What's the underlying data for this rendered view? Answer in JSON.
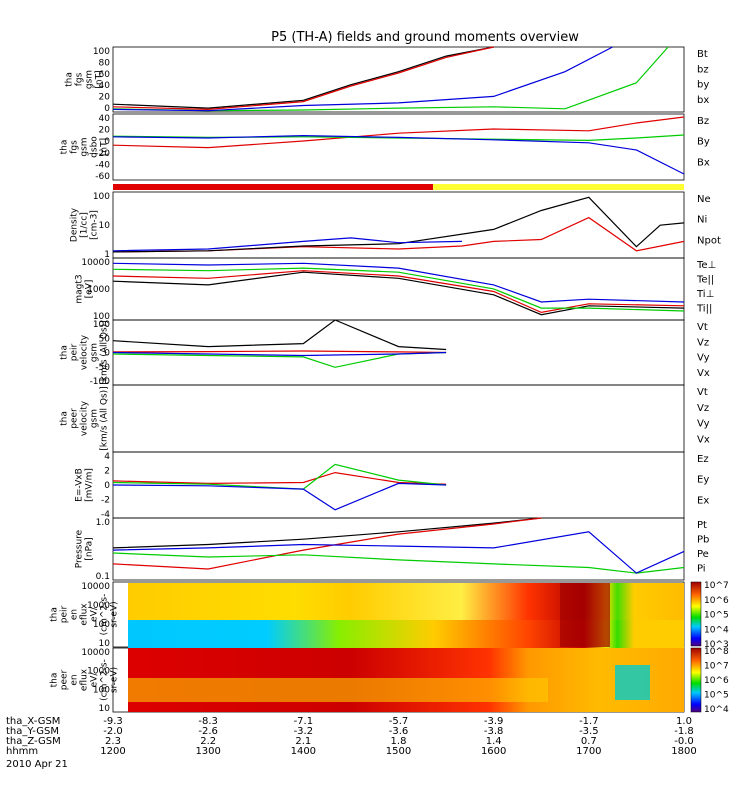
{
  "title": "P5 (TH-A) fields and ground moments overview",
  "x_axis": {
    "rows": [
      {
        "label": "tha_X-GSM",
        "values": [
          "-9.3",
          "-8.3",
          "-7.1",
          "-5.7",
          "-3.9",
          "-1.7",
          "1.0"
        ]
      },
      {
        "label": "tha_Y-GSM",
        "values": [
          "-2.0",
          "-2.6",
          "-3.2",
          "-3.6",
          "-3.8",
          "-3.5",
          "-1.8"
        ]
      },
      {
        "label": "tha_Z-GSM",
        "values": [
          "2.3",
          "2.2",
          "2.1",
          "1.8",
          "1.4",
          "0.7",
          "-0.0"
        ]
      },
      {
        "label": "hhmm",
        "values": [
          "1200",
          "1300",
          "1400",
          "1500",
          "1600",
          "1700",
          "1800"
        ]
      }
    ],
    "date": "2010 Apr 21"
  },
  "colors": {
    "black": "#000000",
    "red": "#e00000",
    "green": "#00cc00",
    "blue": "#0000dd",
    "yellow": "#ffff33"
  },
  "panels": [
    {
      "ylabel": [
        "tha",
        "fgs",
        "gsm",
        "[nT]"
      ],
      "ticks": [
        "100",
        "80",
        "60",
        "40",
        "20",
        "0"
      ],
      "legend": [
        "Bt",
        "bz",
        "by",
        "bx"
      ]
    },
    {
      "ylabel": [
        "tha",
        "fgs",
        "gsm",
        "dsbo",
        "[nT]"
      ],
      "ticks": [
        "40",
        "20",
        "0",
        "-20",
        "-40",
        "-60"
      ],
      "legend": [
        "Bz",
        "By",
        "Bx"
      ]
    },
    {
      "ylabel": [
        "Density",
        "[1/cc]",
        "[cm-3]"
      ],
      "ticks": [
        "100",
        "10",
        "1"
      ],
      "legend": [
        "Ne",
        "Ni",
        "Npot"
      ]
    },
    {
      "ylabel": [
        "magt3",
        "[eV]"
      ],
      "ticks": [
        "10000",
        "1000",
        "100"
      ],
      "legend": [
        "Te⊥",
        "Te||",
        "Ti⊥",
        "Ti||"
      ]
    },
    {
      "ylabel": [
        "tha",
        "peir",
        "velocity",
        "gsm",
        "[km/s (All Qs)]"
      ],
      "ticks": [
        "100",
        "50",
        "0",
        "-50",
        "-100"
      ],
      "legend": [
        "Vt",
        "Vz",
        "Vy",
        "Vx"
      ]
    },
    {
      "ylabel": [
        "tha",
        "peer",
        "velocity",
        "gsm",
        "[km/s (All Qs)]"
      ],
      "ticks": [],
      "legend": [
        "Vt",
        "Vz",
        "Vy",
        "Vx"
      ]
    },
    {
      "ylabel": [
        "E=-VxB",
        "[mV/m]"
      ],
      "ticks": [
        "4",
        "2",
        "0",
        "-2",
        "-4"
      ],
      "legend": [
        "Ez",
        "Ey",
        "Ex"
      ]
    },
    {
      "ylabel": [
        "Pressure",
        "[nPa]"
      ],
      "ticks": [
        "1.0",
        "0.1"
      ],
      "legend": [
        "Pt",
        "Pb",
        "Pe",
        "Pi"
      ]
    },
    {
      "ylabel": [
        "tha",
        "peir",
        "en",
        "eflux",
        "eV/",
        "(cm^2-s-",
        "sr-eV)"
      ],
      "ticks": [
        "10000",
        "1000",
        "100",
        "10"
      ],
      "legend": []
    },
    {
      "ylabel": [
        "tha",
        "peer",
        "en",
        "eflux",
        "eV/",
        "(cm^2-s-",
        "sr-eV)"
      ],
      "ticks": [
        "10000",
        "1000",
        "100",
        "10"
      ],
      "legend": []
    }
  ],
  "colorbars": [
    {
      "labels": [
        "10^7",
        "10^6",
        "10^5",
        "10^4",
        "10^3"
      ],
      "exps": [
        "7",
        "6",
        "5",
        "4",
        "3"
      ]
    },
    {
      "labels": [
        "10^8",
        "10^7",
        "10^6",
        "10^5",
        "10^4"
      ],
      "exps": [
        "8",
        "7",
        "6",
        "5",
        "4"
      ]
    }
  ],
  "chart_data": [
    {
      "type": "line",
      "title": "tha fgs gsm [nT]",
      "x_range": [
        "12:00",
        "18:00"
      ],
      "ylim": [
        0,
        100
      ],
      "series": [
        {
          "name": "Bt",
          "x": [
            "12:00",
            "13:00",
            "14:00",
            "14:30",
            "15:00",
            "15:30",
            "16:00"
          ],
          "values": [
            12,
            6,
            18,
            42,
            62,
            86,
            100
          ]
        },
        {
          "name": "bz",
          "x": [
            "12:00",
            "13:00",
            "14:00",
            "14:30",
            "15:00",
            "15:30",
            "16:00"
          ],
          "values": [
            8,
            4,
            16,
            40,
            60,
            84,
            100
          ]
        },
        {
          "name": "by",
          "x": [
            "12:00",
            "13:00",
            "14:00",
            "15:00",
            "16:00",
            "16:45",
            "17:30",
            "17:50"
          ],
          "values": [
            5,
            2,
            3,
            6,
            8,
            5,
            45,
            100
          ]
        },
        {
          "name": "bx",
          "x": [
            "12:00",
            "13:00",
            "14:00",
            "15:00",
            "16:00",
            "16:45",
            "17:15"
          ],
          "values": [
            4,
            2,
            10,
            14,
            24,
            62,
            100
          ]
        }
      ]
    },
    {
      "type": "line",
      "title": "tha fgs gsm dsbo [nT]",
      "x_range": [
        "12:00",
        "18:00"
      ],
      "ylim": [
        -70,
        40
      ],
      "series": [
        {
          "name": "Bz",
          "x": [
            "12:00",
            "13:00",
            "14:00",
            "15:00",
            "16:00",
            "17:00",
            "17:30",
            "18:00"
          ],
          "values": [
            -12,
            -16,
            -5,
            8,
            15,
            12,
            25,
            35
          ]
        },
        {
          "name": "By",
          "x": [
            "12:00",
            "13:00",
            "14:00",
            "15:00",
            "16:00",
            "17:00",
            "17:30",
            "18:00"
          ],
          "values": [
            3,
            1,
            2,
            0,
            -2,
            -4,
            0,
            5
          ]
        },
        {
          "name": "Bx",
          "x": [
            "12:00",
            "13:00",
            "14:00",
            "15:00",
            "16:00",
            "17:00",
            "17:30",
            "18:00"
          ],
          "values": [
            2,
            0,
            4,
            1,
            -3,
            -8,
            -20,
            -60
          ]
        }
      ]
    },
    {
      "type": "line",
      "title": "Density [1/cc]",
      "yscale": "log",
      "x_range": [
        "12:00",
        "18:00"
      ],
      "ylim": [
        0.5,
        300
      ],
      "series": [
        {
          "name": "Ne",
          "x": [
            "12:00",
            "13:00",
            "14:00",
            "15:00",
            "15:40",
            "16:00",
            "16:30",
            "17:00",
            "17:30",
            "18:00"
          ],
          "values": [
            0.9,
            1.0,
            1.5,
            1.2,
            1.6,
            2.5,
            3,
            25,
            1.0,
            2.5
          ]
        },
        {
          "name": "Ni",
          "x": [
            "12:00",
            "13:00",
            "14:00",
            "15:00",
            "16:00",
            "16:30",
            "17:00",
            "17:30",
            "17:45",
            "18:00"
          ],
          "values": [
            0.9,
            1.0,
            1.6,
            2.0,
            8,
            50,
            180,
            1.5,
            12,
            15
          ]
        },
        {
          "name": "Npot",
          "x": [
            "12:00",
            "13:00",
            "14:00",
            "14:30",
            "15:00",
            "15:40"
          ],
          "values": [
            1.0,
            1.2,
            2.5,
            3.5,
            2.2,
            2.5
          ]
        }
      ]
    },
    {
      "type": "line",
      "title": "magt3 [eV]",
      "yscale": "log",
      "x_range": [
        "12:00",
        "18:00"
      ],
      "ylim": [
        100,
        12000
      ],
      "series": [
        {
          "name": "Te⊥",
          "x": [
            "12:00",
            "13:00",
            "14:00",
            "15:00",
            "16:00",
            "16:30",
            "17:00",
            "18:00"
          ],
          "values": [
            3000,
            2500,
            4500,
            3000,
            900,
            180,
            350,
            300
          ]
        },
        {
          "name": "Te||",
          "x": [
            "12:00",
            "13:00",
            "14:00",
            "15:00",
            "16:00",
            "16:30",
            "17:00",
            "18:00"
          ],
          "values": [
            2000,
            1500,
            4000,
            2500,
            700,
            150,
            300,
            250
          ]
        },
        {
          "name": "Ti⊥",
          "x": [
            "12:00",
            "13:00",
            "14:00",
            "15:00",
            "16:00",
            "16:30",
            "17:00",
            "18:00"
          ],
          "values": [
            8000,
            7000,
            8000,
            5500,
            1500,
            400,
            500,
            400
          ]
        },
        {
          "name": "Ti||",
          "x": [
            "12:00",
            "13:00",
            "14:00",
            "15:00",
            "16:00",
            "16:30",
            "17:00",
            "18:00"
          ],
          "values": [
            5000,
            4500,
            5500,
            4000,
            1100,
            250,
            250,
            200
          ]
        }
      ]
    },
    {
      "type": "line",
      "title": "tha peir velocity gsm [km/s (All Qs)]",
      "x_range": [
        "12:00",
        "15:30"
      ],
      "ylim": [
        -110,
        110
      ],
      "series": [
        {
          "name": "Vt",
          "x": [
            "12:00",
            "13:00",
            "14:00",
            "14:20",
            "15:00",
            "15:30"
          ],
          "values": [
            40,
            20,
            30,
            110,
            20,
            10
          ]
        },
        {
          "name": "Vz",
          "x": [
            "12:00",
            "13:00",
            "14:00",
            "15:00",
            "15:30"
          ],
          "values": [
            2,
            3,
            5,
            2,
            0
          ]
        },
        {
          "name": "Vy",
          "x": [
            "12:00",
            "13:00",
            "14:00",
            "14:20",
            "15:00",
            "15:30"
          ],
          "values": [
            -5,
            -10,
            -15,
            -50,
            -5,
            0
          ]
        },
        {
          "name": "Vx",
          "x": [
            "12:00",
            "13:00",
            "14:00",
            "15:00",
            "15:30"
          ],
          "values": [
            0,
            -5,
            -10,
            -5,
            0
          ]
        }
      ]
    },
    {
      "type": "line",
      "title": "tha peer velocity gsm [km/s (All Qs)]",
      "x_range": [
        "12:00",
        "18:00"
      ],
      "series": [
        {
          "name": "Vt",
          "values": []
        },
        {
          "name": "Vz",
          "values": []
        },
        {
          "name": "Vy",
          "values": []
        },
        {
          "name": "Vx",
          "values": []
        }
      ]
    },
    {
      "type": "line",
      "title": "E=-VxB [mV/m]",
      "x_range": [
        "12:00",
        "15:30"
      ],
      "ylim": [
        -4,
        4
      ],
      "series": [
        {
          "name": "Ez",
          "x": [
            "12:00",
            "13:00",
            "14:00",
            "14:20",
            "15:00",
            "15:30"
          ],
          "values": [
            0.5,
            0.2,
            0.3,
            1.5,
            0.3,
            0.1
          ]
        },
        {
          "name": "Ey",
          "x": [
            "12:00",
            "13:00",
            "14:00",
            "14:20",
            "15:00",
            "15:30"
          ],
          "values": [
            0.3,
            0.1,
            -0.5,
            2.5,
            0.6,
            0
          ]
        },
        {
          "name": "Ex",
          "x": [
            "12:00",
            "13:00",
            "14:00",
            "14:20",
            "15:00",
            "15:30"
          ],
          "values": [
            0,
            -0.1,
            -0.5,
            -3,
            0.2,
            0
          ]
        }
      ]
    },
    {
      "type": "line",
      "title": "Pressure [nPa]",
      "yscale": "log",
      "x_range": [
        "12:00",
        "18:00"
      ],
      "ylim": [
        0.02,
        10
      ],
      "series": [
        {
          "name": "Pt",
          "x": [
            "12:00",
            "13:00",
            "14:00",
            "15:00",
            "16:00",
            "16:30"
          ],
          "values": [
            0.5,
            0.7,
            1.2,
            2.5,
            6,
            10
          ]
        },
        {
          "name": "Pb",
          "x": [
            "12:00",
            "13:00",
            "14:00",
            "15:00",
            "16:00",
            "16:30"
          ],
          "values": [
            0.1,
            0.06,
            0.4,
            2.0,
            5.5,
            10
          ]
        },
        {
          "name": "Pe",
          "x": [
            "12:00",
            "13:00",
            "14:00",
            "15:00",
            "16:00",
            "17:00",
            "17:30",
            "18:00"
          ],
          "values": [
            0.3,
            0.2,
            0.25,
            0.15,
            0.1,
            0.07,
            0.04,
            0.07
          ]
        },
        {
          "name": "Pi",
          "x": [
            "12:00",
            "13:00",
            "14:00",
            "15:00",
            "16:00",
            "17:00",
            "17:30",
            "18:00"
          ],
          "values": [
            0.4,
            0.5,
            0.7,
            0.6,
            0.5,
            2.5,
            0.04,
            0.35
          ]
        }
      ]
    },
    {
      "type": "heatmap",
      "title": "tha peir en eflux eV/(cm^2-s-sr-eV)",
      "x_range": [
        "12:00",
        "18:00"
      ],
      "ylim": [
        5,
        25000
      ],
      "yscale": "log",
      "color_range": [
        "10^3",
        "10^7"
      ]
    },
    {
      "type": "heatmap",
      "title": "tha peer en eflux eV/(cm^2-s-sr-eV)",
      "x_range": [
        "12:00",
        "18:00"
      ],
      "ylim": [
        5,
        25000
      ],
      "yscale": "log",
      "color_range": [
        "10^4",
        "10^8"
      ]
    }
  ]
}
